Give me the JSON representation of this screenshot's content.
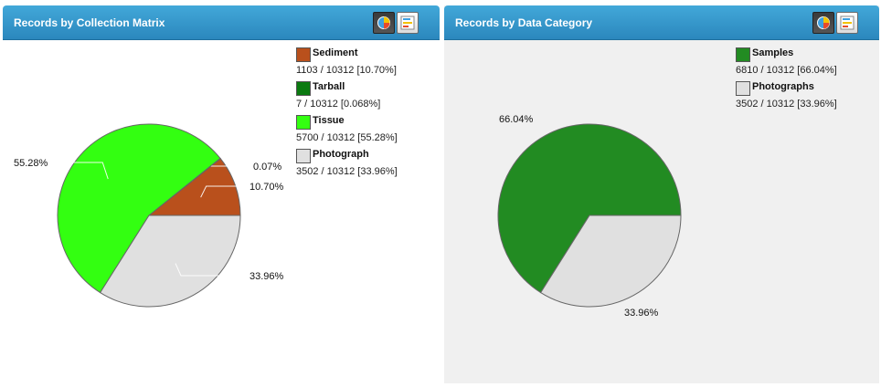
{
  "panels": [
    {
      "title": "Records by Collection Matrix",
      "buttons": [
        {
          "icon": "pie-chart-icon",
          "active": true
        },
        {
          "icon": "bar-chart-icon",
          "active": false
        }
      ]
    },
    {
      "title": "Records by Data Category",
      "buttons": [
        {
          "icon": "pie-chart-icon",
          "active": true
        },
        {
          "icon": "bar-chart-icon",
          "active": false
        }
      ]
    }
  ],
  "chart_data": [
    {
      "type": "pie",
      "title": "Records by Collection Matrix",
      "total": 10312,
      "slices": [
        {
          "label": "Sediment",
          "value": 1103,
          "percent": 10.7,
          "pie_label": "10.70%",
          "stat": "1103 / 10312 [10.70%]",
          "color": "#b9501c"
        },
        {
          "label": "Tarball",
          "value": 7,
          "percent": 0.068,
          "pie_label": "0.07%",
          "stat": "7 / 10312 [0.068%]",
          "color": "#0b7a10"
        },
        {
          "label": "Tissue",
          "value": 5700,
          "percent": 55.28,
          "pie_label": "55.28%",
          "stat": "5700 / 10312 [55.28%]",
          "color": "#33ff11"
        },
        {
          "label": "Photograph",
          "value": 3502,
          "percent": 33.96,
          "pie_label": "33.96%",
          "stat": "3502 / 10312 [33.96%]",
          "color": "#e0e0e0"
        }
      ],
      "legend": "right"
    },
    {
      "type": "pie",
      "title": "Records by Data Category",
      "total": 10312,
      "slices": [
        {
          "label": "Samples",
          "value": 6810,
          "percent": 66.04,
          "pie_label": "66.04%",
          "stat": "6810 / 10312 [66.04%]",
          "color": "#228b22"
        },
        {
          "label": "Photographs",
          "value": 3502,
          "percent": 33.96,
          "pie_label": "33.96%",
          "stat": "3502 / 10312 [33.96%]",
          "color": "#e0e0e0"
        }
      ],
      "legend": "right"
    }
  ]
}
